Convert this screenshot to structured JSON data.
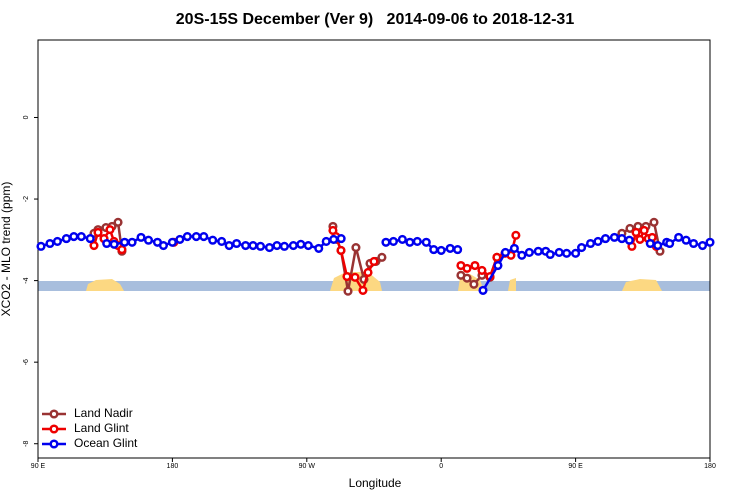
{
  "chart_data": {
    "type": "line",
    "title": "20S-15S December (Ver 9)   2014-09-06 to 2018-12-31",
    "xlabel": "Longitude",
    "ylabel": "XCO2 - MLO trend (ppm)",
    "xlim": [
      90,
      540
    ],
    "ylim": [
      -8.35,
      1.9
    ],
    "xticks": [
      {
        "value": 90,
        "label": "90 E"
      },
      180,
      {
        "value": 270,
        "label": "90 W"
      },
      {
        "value": 360,
        "label": "0"
      },
      {
        "value": 450,
        "label": "90 E"
      },
      {
        "value": 540,
        "label": "180"
      }
    ],
    "yticks": [
      0,
      -2,
      -4,
      -6,
      -8
    ],
    "legend": "bottom-left",
    "series": [
      {
        "name": "Land Nadir",
        "color": "#993333",
        "x": [
          127.5,
          130.2,
          135.5,
          139.6,
          143.6,
          146.2,
          null,
          287.5,
          290.2,
          292.9,
          297.6,
          302.9,
          308.3,
          312.3,
          316.3,
          320.3,
          null,
          373.2,
          377.3,
          381.9,
          387.3,
          392.7,
          397.3,
          null,
          481,
          486.4,
          491.8,
          497.1,
          502.5,
          506.5
        ],
        "values": [
          -2.84,
          -2.75,
          -2.7,
          -2.67,
          -2.57,
          -3.28,
          null,
          -2.67,
          -2.99,
          -3.26,
          -4.26,
          -3.19,
          -3.97,
          -3.58,
          -3.53,
          -3.43,
          null,
          -3.87,
          -3.94,
          -4.09,
          -3.87,
          -3.92,
          -3.43,
          null,
          -2.84,
          -2.72,
          -2.67,
          -2.67,
          -2.57,
          -3.28
        ]
      },
      {
        "name": "Land Glint",
        "color": "#ee0000",
        "x": [
          127.5,
          130.2,
          134.2,
          138.2,
          140.9,
          143.6,
          146.2,
          null,
          181,
          null,
          287.5,
          289.5,
          292.9,
          296.9,
          302.3,
          307.6,
          311,
          315,
          null,
          373.2,
          377.3,
          382.6,
          387.3,
          392.7,
          397.3,
          402.7,
          406.7,
          410,
          null,
          487.7,
          490.5,
          493.1,
          495.9,
          498.6,
          501.3,
          504
        ],
        "values": [
          -3.14,
          -2.82,
          -2.97,
          -2.75,
          -3.04,
          -3.14,
          -3.24,
          null,
          -3.06,
          null,
          -2.77,
          -2.92,
          -3.26,
          -3.9,
          -3.92,
          -4.24,
          -3.8,
          -3.53,
          null,
          -3.63,
          -3.7,
          -3.63,
          -3.75,
          -3.9,
          -3.43,
          -3.33,
          -3.38,
          -2.89,
          null,
          -3.16,
          -2.82,
          -2.99,
          -2.77,
          -2.97,
          -2.94,
          -3.16
        ]
      },
      {
        "name": "Ocean Glint",
        "color": "#0000ee",
        "x": [
          92,
          98,
          103,
          109,
          114,
          119,
          125,
          null,
          136,
          141,
          148,
          153,
          159,
          164,
          170,
          174,
          180,
          185,
          190,
          196,
          201,
          207,
          213,
          218,
          223,
          229,
          234,
          239,
          245,
          250,
          255,
          261,
          266,
          271,
          278,
          283,
          288,
          293,
          null,
          323,
          328,
          334,
          339,
          344,
          350,
          355,
          360,
          366,
          371,
          null,
          388,
          398,
          403,
          409,
          414,
          419,
          425,
          430,
          433,
          439,
          444,
          450,
          454,
          460,
          465,
          470,
          476,
          481,
          486,
          null,
          500,
          505,
          511,
          513,
          519,
          524,
          529,
          535,
          540
        ],
        "values": [
          -3.16,
          -3.09,
          -3.04,
          -2.97,
          -2.92,
          -2.92,
          -2.97,
          null,
          -3.09,
          -3.11,
          -3.06,
          -3.06,
          -2.94,
          -3.01,
          -3.06,
          -3.14,
          -3.06,
          -2.99,
          -2.92,
          -2.92,
          -2.92,
          -3.01,
          -3.04,
          -3.14,
          -3.09,
          -3.14,
          -3.14,
          -3.16,
          -3.19,
          -3.14,
          -3.16,
          -3.14,
          -3.11,
          -3.14,
          -3.21,
          -3.04,
          -2.99,
          -2.97,
          null,
          -3.06,
          -3.04,
          -2.99,
          -3.06,
          -3.04,
          -3.06,
          -3.24,
          -3.26,
          -3.21,
          -3.24,
          null,
          -4.24,
          -3.63,
          -3.31,
          -3.21,
          -3.38,
          -3.31,
          -3.28,
          -3.28,
          -3.36,
          -3.31,
          -3.33,
          -3.33,
          -3.19,
          -3.09,
          -3.04,
          -2.97,
          -2.94,
          -2.97,
          -3.01,
          null,
          -3.09,
          -3.14,
          -3.06,
          -3.09,
          -2.94,
          -3.01,
          -3.09,
          -3.14,
          -3.06
        ]
      }
    ]
  }
}
